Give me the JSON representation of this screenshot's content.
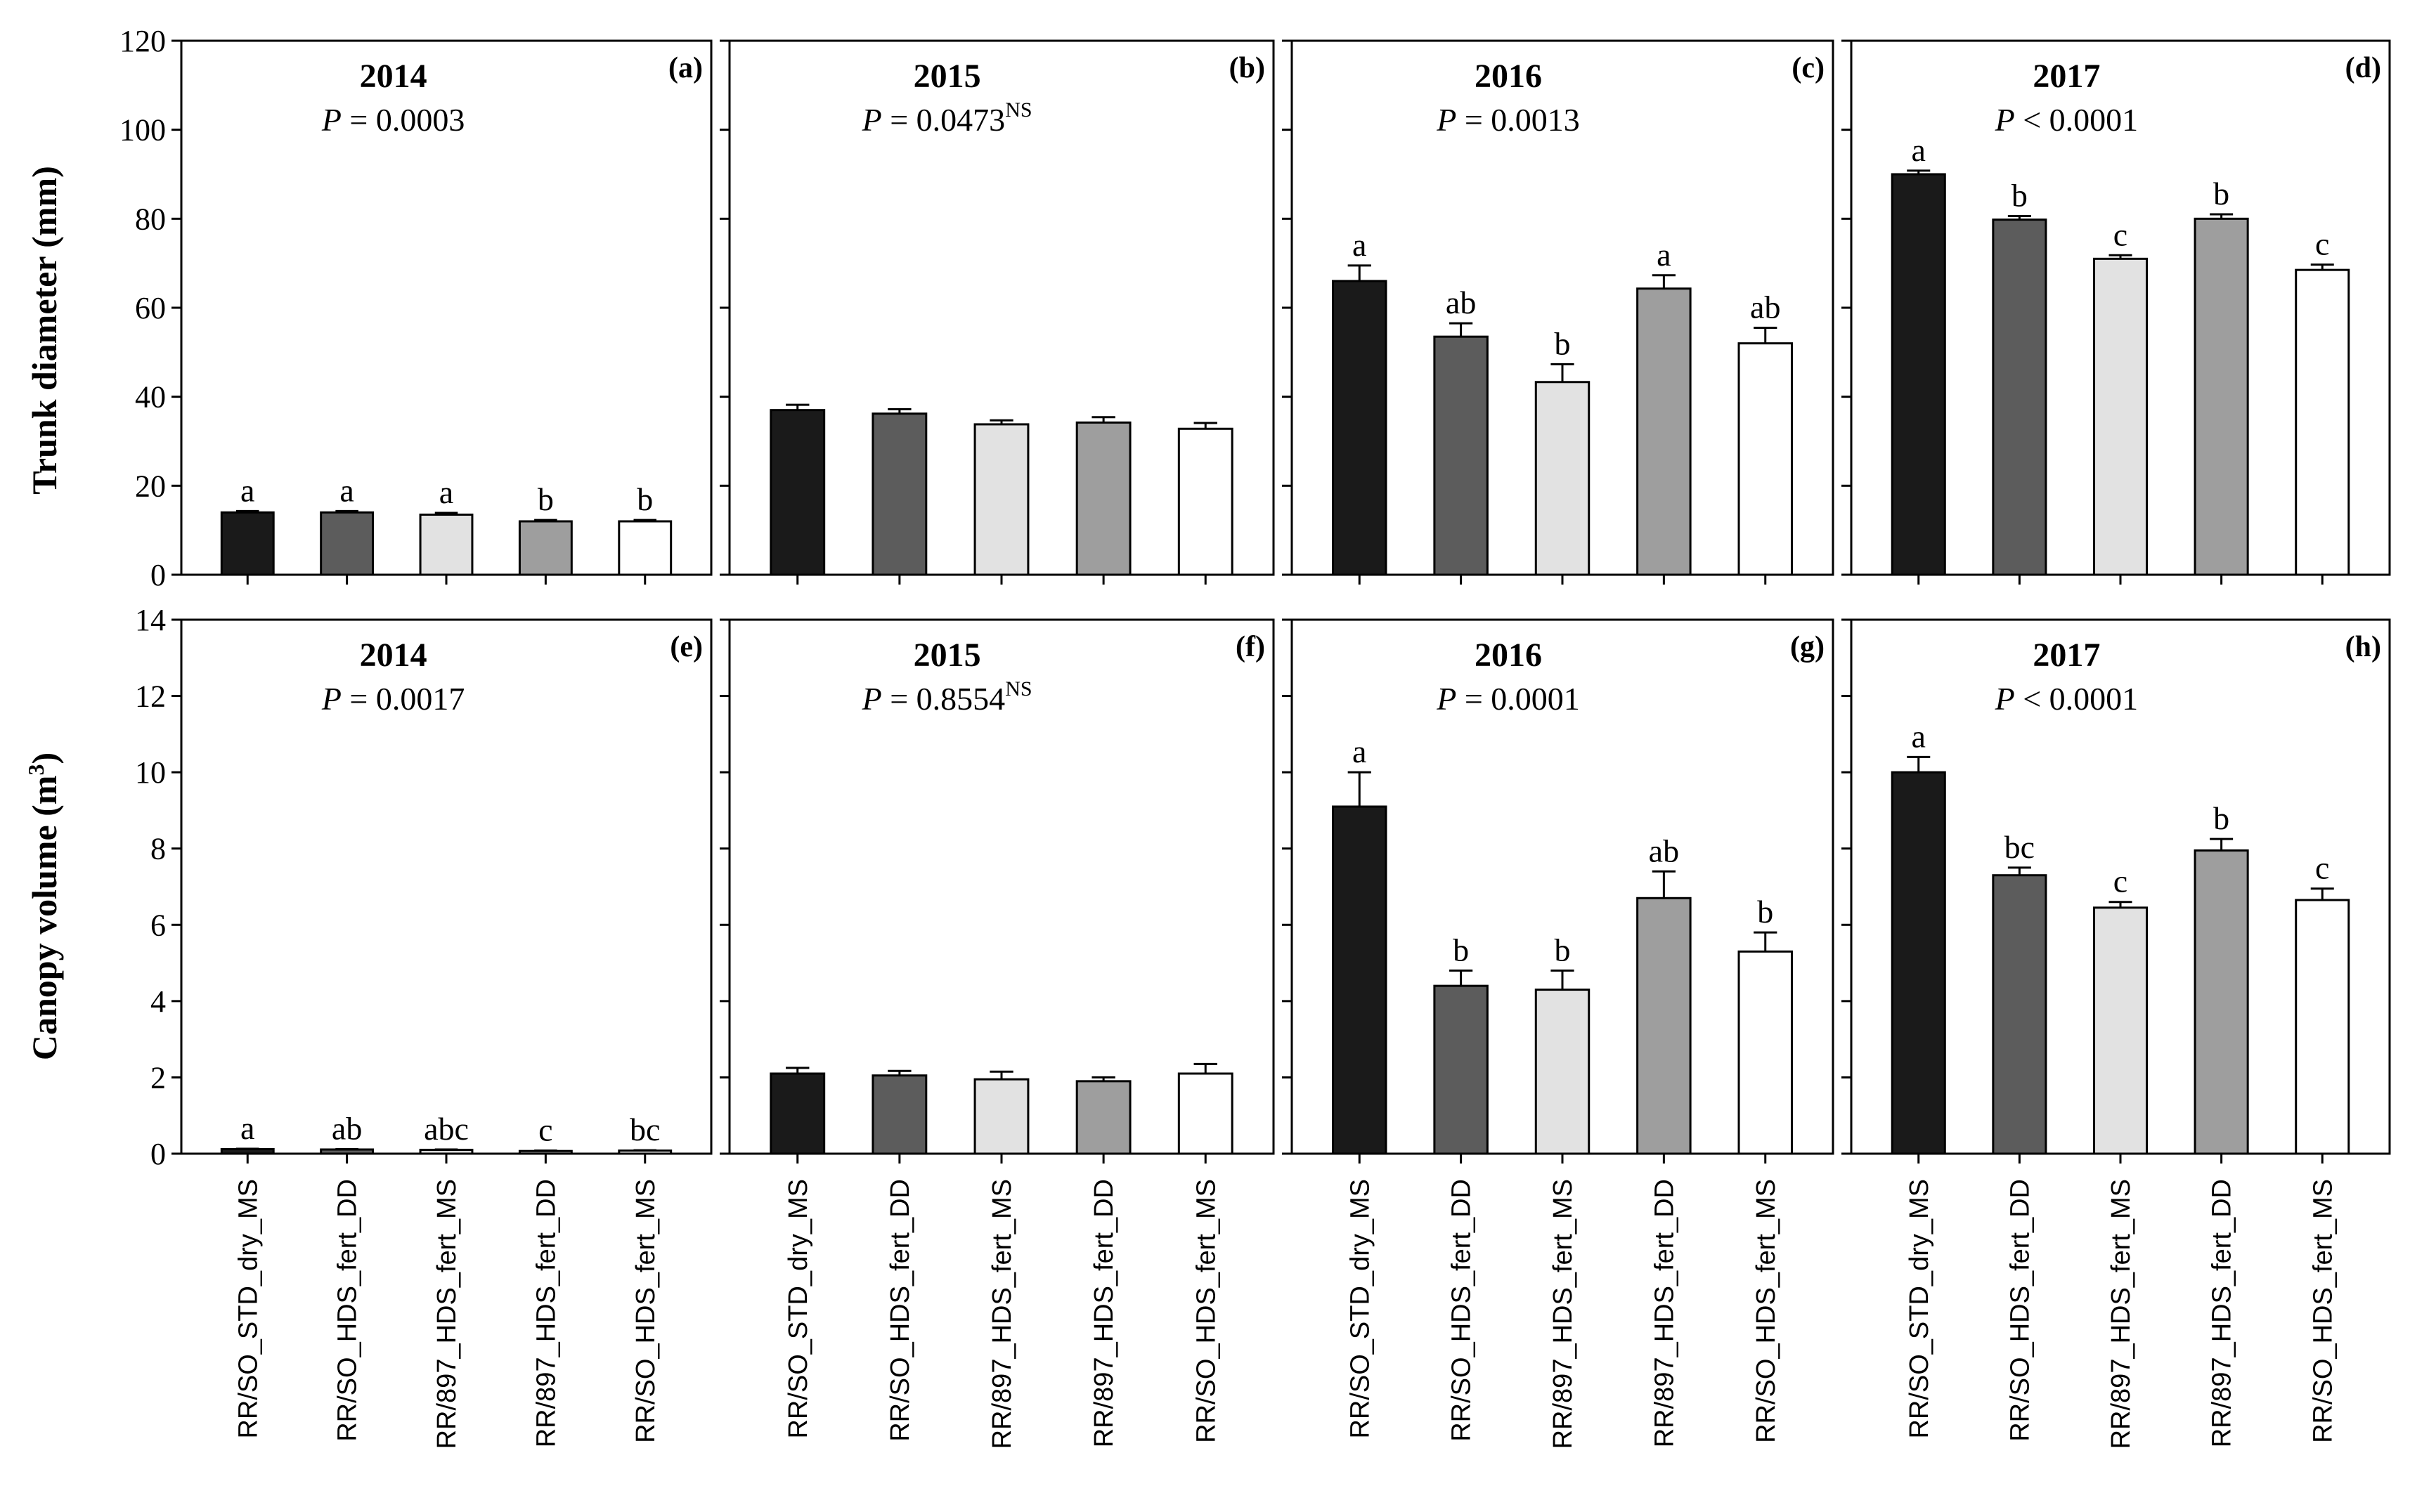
{
  "figure": {
    "categories": [
      "RR/SO_STD_dry_MS",
      "RR/SO_HDS_fert_DD",
      "RR/897_HDS_fert_MS",
      "RR/897_HDS_fert_DD",
      "RR/SO_HDS_fert_MS"
    ],
    "bar_colors": [
      "#1a1a1a",
      "#5c5c5c",
      "#e2e2e2",
      "#9e9e9e",
      "#ffffff"
    ],
    "rows": [
      {
        "ylabel": "Trunk diameter (mm)",
        "ylabel_sup": "",
        "ylabel_close": "",
        "ylim": [
          0,
          120
        ],
        "ticks": [
          "0",
          "20",
          "40",
          "60",
          "80",
          "100",
          "120"
        ]
      },
      {
        "ylabel": "Canopy volume (m",
        "ylabel_sup": "3",
        "ylabel_close": ")",
        "ylim": [
          0,
          14
        ],
        "ticks": [
          "0",
          "2",
          "4",
          "6",
          "8",
          "10",
          "12",
          "14"
        ]
      }
    ]
  },
  "chart_data": [
    {
      "type": "bar",
      "panel": "(a)",
      "title": "2014",
      "p_prefix": "P",
      "p_rest": " = 0.0003",
      "p_ns": "",
      "ylabel": "Trunk diameter (mm)",
      "ylim": [
        0,
        120
      ],
      "categories": [
        "RR/SO_STD_dry_MS",
        "RR/SO_HDS_fert_DD",
        "RR/897_HDS_fert_MS",
        "RR/897_HDS_fert_DD",
        "RR/SO_HDS_fert_MS"
      ],
      "values": [
        14,
        14,
        13.5,
        12,
        12
      ],
      "errors": [
        0.3,
        0.3,
        0.4,
        0.3,
        0.3
      ],
      "letters": [
        "a",
        "a",
        "a",
        "b",
        "b"
      ]
    },
    {
      "type": "bar",
      "panel": "(b)",
      "title": "2015",
      "p_prefix": "P",
      "p_rest": " = 0.0473",
      "p_ns": "NS",
      "ylabel": "Trunk diameter (mm)",
      "ylim": [
        0,
        120
      ],
      "categories": [
        "RR/SO_STD_dry_MS",
        "RR/SO_HDS_fert_DD",
        "RR/897_HDS_fert_MS",
        "RR/897_HDS_fert_DD",
        "RR/SO_HDS_fert_MS"
      ],
      "values": [
        37,
        36.2,
        33.8,
        34.2,
        32.8
      ],
      "errors": [
        1.2,
        1.0,
        0.9,
        1.2,
        1.3
      ],
      "letters": [
        "",
        "",
        "",
        "",
        ""
      ]
    },
    {
      "type": "bar",
      "panel": "(c)",
      "title": "2016",
      "p_prefix": "P",
      "p_rest": " = 0.0013",
      "p_ns": "",
      "ylabel": "Trunk diameter (mm)",
      "ylim": [
        0,
        120
      ],
      "categories": [
        "RR/SO_STD_dry_MS",
        "RR/SO_HDS_fert_DD",
        "RR/897_HDS_fert_MS",
        "RR/897_HDS_fert_DD",
        "RR/SO_HDS_fert_MS"
      ],
      "values": [
        66,
        53.5,
        43.3,
        64.3,
        52
      ],
      "errors": [
        3.5,
        3.0,
        4.0,
        3.0,
        3.5
      ],
      "letters": [
        "a",
        "ab",
        "b",
        "a",
        "ab"
      ]
    },
    {
      "type": "bar",
      "panel": "(d)",
      "title": "2017",
      "p_prefix": "P",
      "p_rest": " < 0.0001",
      "p_ns": "",
      "ylabel": "Trunk diameter (mm)",
      "ylim": [
        0,
        120
      ],
      "categories": [
        "RR/SO_STD_dry_MS",
        "RR/SO_HDS_fert_DD",
        "RR/897_HDS_fert_MS",
        "RR/897_HDS_fert_DD",
        "RR/SO_HDS_fert_MS"
      ],
      "values": [
        90,
        79.8,
        71,
        80,
        68.5
      ],
      "errors": [
        0.8,
        0.8,
        0.8,
        1.0,
        1.2
      ],
      "letters": [
        "a",
        "b",
        "c",
        "b",
        "c"
      ]
    },
    {
      "type": "bar",
      "panel": "(e)",
      "title": "2014",
      "p_prefix": "P",
      "p_rest": " = 0.0017",
      "p_ns": "",
      "ylabel": "Canopy volume (m3)",
      "ylim": [
        0,
        14
      ],
      "categories": [
        "RR/SO_STD_dry_MS",
        "RR/SO_HDS_fert_DD",
        "RR/897_HDS_fert_MS",
        "RR/897_HDS_fert_DD",
        "RR/SO_HDS_fert_MS"
      ],
      "values": [
        0.12,
        0.11,
        0.1,
        0.07,
        0.08
      ],
      "errors": [
        0.01,
        0.01,
        0.01,
        0.01,
        0.01
      ],
      "letters": [
        "a",
        "ab",
        "abc",
        "c",
        "bc"
      ]
    },
    {
      "type": "bar",
      "panel": "(f)",
      "title": "2015",
      "p_prefix": "P",
      "p_rest": " = 0.8554",
      "p_ns": "NS",
      "ylabel": "Canopy volume (m3)",
      "ylim": [
        0,
        14
      ],
      "categories": [
        "RR/SO_STD_dry_MS",
        "RR/SO_HDS_fert_DD",
        "RR/897_HDS_fert_MS",
        "RR/897_HDS_fert_DD",
        "RR/SO_HDS_fert_MS"
      ],
      "values": [
        2.1,
        2.05,
        1.95,
        1.9,
        2.1
      ],
      "errors": [
        0.15,
        0.12,
        0.2,
        0.1,
        0.25
      ],
      "letters": [
        "",
        "",
        "",
        "",
        ""
      ]
    },
    {
      "type": "bar",
      "panel": "(g)",
      "title": "2016",
      "p_prefix": "P",
      "p_rest": " = 0.0001",
      "p_ns": "",
      "ylabel": "Canopy volume (m3)",
      "ylim": [
        0,
        14
      ],
      "categories": [
        "RR/SO_STD_dry_MS",
        "RR/SO_HDS_fert_DD",
        "RR/897_HDS_fert_MS",
        "RR/897_HDS_fert_DD",
        "RR/SO_HDS_fert_MS"
      ],
      "values": [
        9.1,
        4.4,
        4.3,
        6.7,
        5.3
      ],
      "errors": [
        0.9,
        0.4,
        0.5,
        0.7,
        0.5
      ],
      "letters": [
        "a",
        "b",
        "b",
        "ab",
        "b"
      ]
    },
    {
      "type": "bar",
      "panel": "(h)",
      "title": "2017",
      "p_prefix": "P",
      "p_rest": " < 0.0001",
      "p_ns": "",
      "ylabel": "Canopy volume (m3)",
      "ylim": [
        0,
        14
      ],
      "categories": [
        "RR/SO_STD_dry_MS",
        "RR/SO_HDS_fert_DD",
        "RR/897_HDS_fert_MS",
        "RR/897_HDS_fert_DD",
        "RR/SO_HDS_fert_MS"
      ],
      "values": [
        10,
        7.3,
        6.45,
        7.95,
        6.65
      ],
      "errors": [
        0.4,
        0.2,
        0.15,
        0.3,
        0.3
      ],
      "letters": [
        "a",
        "bc",
        "c",
        "b",
        "c"
      ]
    }
  ]
}
